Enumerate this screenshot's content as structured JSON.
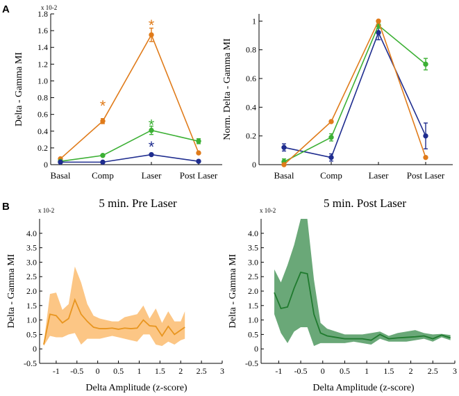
{
  "panel_labels": {
    "a": "A",
    "b": "B"
  },
  "chart_data": [
    {
      "id": "a1",
      "type": "line",
      "ylabel": "Delta - Gamma MI",
      "sci_label": "x 10-2",
      "categories": [
        "Basal",
        "Comp",
        "Laser",
        "Post Laser"
      ],
      "ylim": [
        0,
        1.8
      ],
      "yticks": [
        "0",
        "0.2",
        "0.4",
        "0.6",
        "0.8",
        "1.0",
        "1.2",
        "1.4",
        "1.6",
        "1.8"
      ],
      "series": [
        {
          "name": "orange",
          "color": "#e07b1a",
          "values": [
            0.07,
            0.52,
            1.55,
            0.14
          ],
          "errors": [
            0.01,
            0.03,
            0.08,
            0.01
          ]
        },
        {
          "name": "green",
          "color": "#3cb034",
          "values": [
            0.04,
            0.11,
            0.41,
            0.28
          ],
          "errors": [
            0.01,
            0.01,
            0.05,
            0.03
          ]
        },
        {
          "name": "blue",
          "color": "#1f2d8f",
          "values": [
            0.03,
            0.03,
            0.12,
            0.04
          ],
          "errors": [
            0.005,
            0.005,
            0.01,
            0.005
          ]
        }
      ],
      "annotations": [
        {
          "text": "*",
          "color": "#e07b1a",
          "cat": 1,
          "y": 0.74
        },
        {
          "text": "*",
          "color": "#e07b1a",
          "cat": 2,
          "y": 1.7
        },
        {
          "text": "*",
          "color": "#3cb034",
          "cat": 2,
          "y": 0.51
        },
        {
          "text": "*",
          "color": "#1f2d8f",
          "cat": 2,
          "y": 0.25
        }
      ]
    },
    {
      "id": "a2",
      "type": "line",
      "ylabel": "Norm. Delta - Gamma MI",
      "categories": [
        "Basal",
        "Comp",
        "Laser",
        "Post Laser"
      ],
      "ylim": [
        0,
        1.05
      ],
      "yticks": [
        "0",
        "0.2",
        "0.4",
        "0.6",
        "0.8",
        "1"
      ],
      "series": [
        {
          "name": "blue",
          "color": "#1f2d8f",
          "values": [
            0.12,
            0.05,
            0.92,
            0.2
          ],
          "errors": [
            0.025,
            0.025,
            0.05,
            0.09
          ]
        },
        {
          "name": "green",
          "color": "#3cb034",
          "values": [
            0.02,
            0.19,
            0.97,
            0.7
          ],
          "errors": [
            0.02,
            0.025,
            0.02,
            0.04
          ]
        },
        {
          "name": "orange",
          "color": "#e07b1a",
          "values": [
            0.0,
            0.3,
            1.0,
            0.05
          ],
          "errors": [
            0.005,
            0.005,
            0.005,
            0.005
          ]
        }
      ]
    },
    {
      "id": "b1",
      "type": "area",
      "title": "5 min. Pre Laser",
      "ylabel": "Delta - Gamma MI",
      "xlabel": "Delta Amplitude (z-score)",
      "sci_label": "x 10-2",
      "xlim": [
        -1.4,
        3
      ],
      "ylim": [
        -0.5,
        4.5
      ],
      "xticks": [
        "-1",
        "-0.5",
        "0",
        "0.5",
        "1",
        "1.5",
        "2",
        "2.5",
        "3"
      ],
      "yticks": [
        "-0.5",
        "0",
        "0.5",
        "1.0",
        "1.5",
        "2.0",
        "2.5",
        "3.0",
        "3.5",
        "4.0"
      ],
      "line_color": "#e8951f",
      "fill_color": "#fcc685",
      "x": [
        -1.3,
        -1.15,
        -1.0,
        -0.85,
        -0.7,
        -0.55,
        -0.4,
        -0.25,
        -0.1,
        0.05,
        0.2,
        0.35,
        0.5,
        0.65,
        0.8,
        0.95,
        1.1,
        1.25,
        1.4,
        1.55,
        1.7,
        1.85,
        2.0,
        2.1
      ],
      "y": [
        0.15,
        1.2,
        1.15,
        0.9,
        1.05,
        1.7,
        1.2,
        0.95,
        0.75,
        0.7,
        0.7,
        0.72,
        0.68,
        0.72,
        0.7,
        0.72,
        1.0,
        0.8,
        0.78,
        0.45,
        0.78,
        0.5,
        0.65,
        0.75
      ],
      "upper": [
        0.2,
        1.9,
        1.95,
        1.35,
        1.55,
        2.85,
        2.3,
        1.55,
        1.15,
        1.05,
        1.0,
        0.95,
        0.95,
        1.1,
        1.15,
        1.2,
        1.5,
        1.05,
        1.4,
        0.9,
        1.3,
        0.95,
        0.95,
        1.3
      ],
      "lower": [
        0.1,
        0.45,
        0.4,
        0.4,
        0.5,
        0.55,
        0.15,
        0.35,
        0.35,
        0.35,
        0.4,
        0.45,
        0.4,
        0.35,
        0.3,
        0.25,
        0.5,
        0.5,
        0.15,
        0.1,
        0.25,
        0.15,
        0.3,
        0.35
      ]
    },
    {
      "id": "b2",
      "type": "area",
      "title": "5 min. Post Laser",
      "ylabel": "Delta - Gamma MI",
      "xlabel": "Delta Amplitude (z-score)",
      "sci_label": "x 10-2",
      "xlim": [
        -1.4,
        3
      ],
      "ylim": [
        -0.5,
        4.5
      ],
      "xticks": [
        "-1",
        "-0.5",
        "0",
        "0.5",
        "1",
        "1.5",
        "2",
        "2.5",
        "3"
      ],
      "yticks": [
        "-0.5",
        "0",
        "0.5",
        "1.0",
        "1.5",
        "2.0",
        "2.5",
        "3.0",
        "3.5",
        "4.0"
      ],
      "line_color": "#1f7a2e",
      "fill_color": "#6aa878",
      "x": [
        -1.1,
        -0.95,
        -0.8,
        -0.65,
        -0.5,
        -0.35,
        -0.2,
        -0.05,
        0.1,
        0.3,
        0.5,
        0.7,
        0.9,
        1.1,
        1.3,
        1.5,
        1.7,
        1.9,
        2.1,
        2.3,
        2.5,
        2.7,
        2.9
      ],
      "y": [
        1.95,
        1.4,
        1.45,
        2.1,
        2.65,
        2.6,
        1.2,
        0.55,
        0.45,
        0.4,
        0.35,
        0.35,
        0.35,
        0.3,
        0.5,
        0.35,
        0.38,
        0.4,
        0.42,
        0.45,
        0.35,
        0.48,
        0.38
      ],
      "upper": [
        2.75,
        2.3,
        2.9,
        3.6,
        4.5,
        4.5,
        2.4,
        0.9,
        0.7,
        0.6,
        0.5,
        0.5,
        0.5,
        0.55,
        0.6,
        0.45,
        0.55,
        0.6,
        0.65,
        0.55,
        0.5,
        0.52,
        0.48
      ],
      "lower": [
        1.2,
        0.55,
        0.2,
        0.6,
        0.75,
        0.75,
        0.1,
        0.2,
        0.2,
        0.2,
        0.2,
        0.25,
        0.2,
        0.15,
        0.35,
        0.25,
        0.25,
        0.25,
        0.3,
        0.35,
        0.25,
        0.4,
        0.3
      ]
    }
  ]
}
